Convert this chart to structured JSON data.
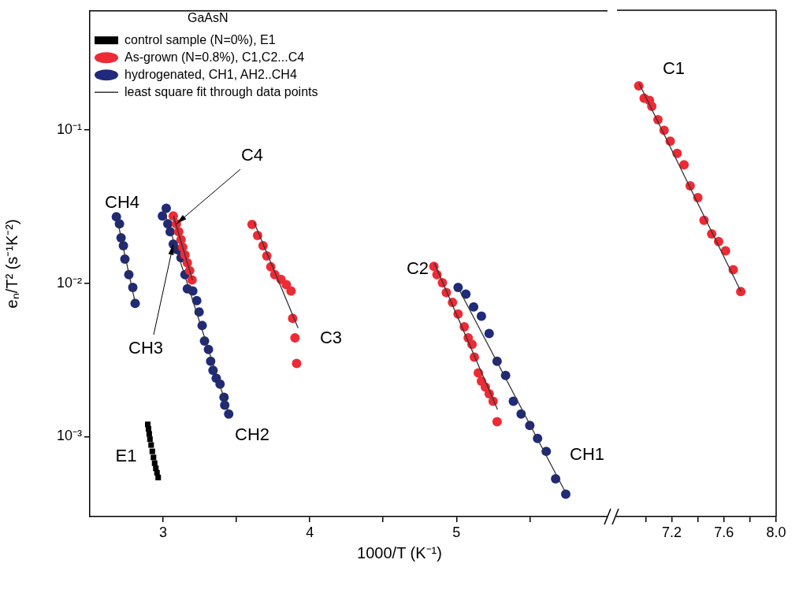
{
  "chart_data": [
    {
      "type": "scatter",
      "xlabel": "1000/T (K⁻¹)",
      "ylabel": "eₙ/T² (s⁻¹K⁻²)",
      "legend_title": "GaAsN",
      "legend": "top left",
      "grid": false,
      "log": "y",
      "marker": "circle",
      "xlim": [
        2.5,
        6.03
      ],
      "xticks": [
        3,
        {
          "value": 3.5,
          "label": null
        },
        4,
        {
          "value": 4.5,
          "label": null
        },
        5,
        {
          "value": 5.5,
          "label": null
        }
      ],
      "ylim": [
        0.0003,
        0.6
      ],
      "yticks": [
        {
          "value": 0.001,
          "label": "10⁻³"
        },
        {
          "value": 0.01,
          "label": "10⁻²"
        },
        {
          "value": 0.1,
          "label": "10⁻¹"
        }
      ],
      "series": [
        {
          "name": "control sample (N=0%), E1",
          "marker": "square",
          "color": "#000000",
          "x": [
            2.895,
            2.9,
            2.905,
            2.91,
            2.918,
            2.926,
            2.934,
            2.942,
            2.95,
            2.958,
            2.966
          ],
          "values": [
            0.0012,
            0.00112,
            0.00104,
            0.00096,
            0.00088,
            0.0008,
            0.00073,
            0.00067,
            0.00062,
            0.00058,
            0.00054
          ]
        },
        {
          "name": "As-grown (N=0.8%), C1,C2...C4",
          "color": "#ee2a35",
          "x": [
            3.069,
            3.09,
            3.106,
            3.122,
            3.133,
            3.149,
            3.165,
            3.181,
            3.197,
            3.606,
            3.644,
            3.681,
            3.707,
            3.734,
            3.761,
            3.803,
            3.84,
            3.872,
            3.883,
            3.899,
            3.91,
            4.846,
            4.867,
            4.904,
            4.931,
            4.973,
            5.011,
            5.053,
            5.08,
            5.106,
            5.122,
            5.149,
            5.17,
            5.197,
            5.223,
            5.25,
            5.277
          ],
          "values": [
            0.0275,
            0.0244,
            0.0217,
            0.0193,
            0.0172,
            0.0153,
            0.0136,
            0.0121,
            0.0105,
            0.0242,
            0.0205,
            0.0176,
            0.0151,
            0.0128,
            0.0114,
            0.0106,
            0.0098,
            0.0089,
            0.0059,
            0.0044,
            0.003,
            0.0129,
            0.0114,
            0.0101,
            0.0087,
            0.0075,
            0.0063,
            0.0052,
            0.0044,
            0.004,
            0.0033,
            0.0026,
            0.0023,
            0.0021,
            0.0019,
            0.0017,
            0.00125
          ]
        },
        {
          "name": "hydrogenated, CH1, AH2..CH4",
          "color": "#1f2a7a",
          "x": [
            2.681,
            2.702,
            2.713,
            2.729,
            2.739,
            2.766,
            2.793,
            2.809,
            3.021,
            2.995,
            3.032,
            3.048,
            3.069,
            3.096,
            3.122,
            3.149,
            3.165,
            3.202,
            3.229,
            3.245,
            3.266,
            3.282,
            3.309,
            3.324,
            3.34,
            3.362,
            3.388,
            3.415,
            3.42,
            3.447,
            5.011,
            5.064,
            5.117,
            5.17,
            5.223,
            5.277,
            5.335,
            5.388,
            5.441,
            5.5,
            5.553,
            5.612,
            5.676,
            5.745
          ],
          "values": [
            0.0272,
            0.0244,
            0.0198,
            0.0176,
            0.0144,
            0.0114,
            0.0094,
            0.0074,
            0.0309,
            0.0275,
            0.0244,
            0.0217,
            0.018,
            0.0166,
            0.0147,
            0.0114,
            0.0092,
            0.0089,
            0.0077,
            0.0065,
            0.0053,
            0.0042,
            0.0037,
            0.0031,
            0.0027,
            0.0024,
            0.0022,
            0.0018,
            0.0016,
            0.0014,
            0.0094,
            0.0085,
            0.007,
            0.0061,
            0.0047,
            0.0031,
            0.0025,
            0.0017,
            0.0014,
            0.00118,
            0.00097,
            0.0008,
            0.00053,
            0.00042
          ]
        },
        {
          "name": "least square fit through data points",
          "type": "line",
          "marker": "none",
          "color": "#333333",
          "x": [
            2.68,
            2.81
          ],
          "values": [
            0.028,
            0.0074
          ]
        },
        {
          "type": "line",
          "marker": "none",
          "color": "#333333",
          "x": [
            3.0,
            3.45
          ],
          "values": [
            0.031,
            0.0014
          ]
        },
        {
          "type": "line",
          "marker": "none",
          "color": "#333333",
          "x": [
            3.07,
            3.2
          ],
          "values": [
            0.0275,
            0.0105
          ]
        },
        {
          "type": "line",
          "marker": "none",
          "color": "#333333",
          "x": [
            3.62,
            3.92
          ],
          "values": [
            0.025,
            0.0051
          ]
        },
        {
          "type": "line",
          "marker": "none",
          "color": "#333333",
          "x": [
            4.85,
            5.28
          ],
          "values": [
            0.0135,
            0.0015
          ]
        },
        {
          "type": "line",
          "marker": "none",
          "color": "#333333",
          "x": [
            5.01,
            5.75
          ],
          "values": [
            0.0094,
            0.00042
          ]
        }
      ],
      "annotations": [
        "CH4",
        {
          "text": "C4",
          "x": 3.09,
          "y": 0.0244
        },
        {
          "text": "CH3",
          "x": 3.069,
          "y": 0.018
        },
        "C3",
        "C2",
        "CH1",
        "CH2",
        "E1"
      ]
    },
    {
      "type": "scatter",
      "grid": false,
      "log": "y",
      "marker": "circle",
      "tick_labels": "x",
      "xlim": [
        6.78,
        8.0
      ],
      "xticks": [
        {
          "value": 7.0,
          "label": null
        },
        7.2,
        {
          "value": 7.4,
          "label": null
        },
        7.6,
        {
          "value": 7.8,
          "label": null
        },
        {
          "value": 8.0,
          "label": "8.0"
        }
      ],
      "ylim": [
        0.0003,
        0.6
      ],
      "series": [
        {
          "color": "#ee2a35",
          "x": [
            6.947,
            6.988,
            7.029,
            7.047,
            7.094,
            7.141,
            7.188,
            7.241,
            7.294,
            7.341,
            7.4,
            7.447,
            7.506,
            7.559,
            7.612,
            7.671,
            7.729
          ],
          "values": [
            0.193,
            0.16,
            0.155,
            0.142,
            0.116,
            0.099,
            0.084,
            0.07,
            0.059,
            0.043,
            0.036,
            0.0256,
            0.0209,
            0.0186,
            0.0162,
            0.0122,
            0.0088
          ]
        },
        {
          "type": "line",
          "marker": "none",
          "color": "#333333",
          "x": [
            6.95,
            7.73
          ],
          "values": [
            0.2,
            0.0088
          ]
        }
      ],
      "annotations": [
        "C1"
      ]
    }
  ]
}
